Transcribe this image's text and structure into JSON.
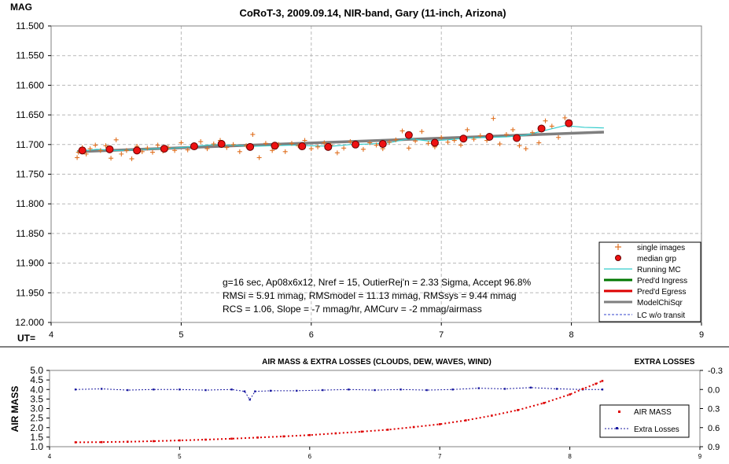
{
  "top_chart": {
    "title": "CoRoT-3, 2009.09.14, NIR-band, Gary (11-inch, Arizona)",
    "ylabel": "MAG",
    "xlabel": "UT=",
    "x_ticks": [
      "4",
      "5",
      "6",
      "7",
      "8",
      "9"
    ],
    "y_ticks": [
      "11.500",
      "11.550",
      "11.600",
      "11.650",
      "11.700",
      "11.750",
      "11.800",
      "11.850",
      "11.900",
      "11.950",
      "12.000"
    ],
    "legend": {
      "single": "single images",
      "median": "median grp",
      "running": "Running MC",
      "ingress": "Pred'd Ingress",
      "egress": "Pred'd Egress",
      "model": "ModelChiSqr",
      "lc": "LC w/o transit"
    },
    "notes": {
      "line1": "g=16 sec, Ap08x6x12, Nref = 15, OutierRej'n = 2.33 Sigma, Accept 96.8%",
      "line2": "RMSi = 5.91 mmag, RMSmodel = 11.13 mmag, RMSsys = 9.44 mmag",
      "line3": "RCS = 1.06, Slope = -7 mmag/hr, AMCurv = -2 mmag/airmass"
    }
  },
  "bottom_chart": {
    "title": "AIR MASS & EXTRA LOSSES (CLOUDS, DEW, WAVES, WIND)",
    "right_title": "EXTRA LOSSES",
    "ylabel": "AIR MASS",
    "x_ticks": [
      "4",
      "5",
      "6",
      "7",
      "8",
      "9"
    ],
    "y_ticks": [
      "5.0",
      "4.5",
      "4.0",
      "3.5",
      "3.0",
      "2.5",
      "2.0",
      "1.5",
      "1.0"
    ],
    "y2_ticks": [
      "-0.3",
      "0.0",
      "0.3",
      "0.6",
      "0.9"
    ],
    "legend": {
      "airmass": "AIR MASS",
      "extra": "Extra Losses"
    }
  },
  "colors": {
    "single": "#e07020",
    "median_fill": "#ee1111",
    "median_edge": "#660000",
    "running": "#33cccc",
    "ingress": "#007700",
    "egress": "#dd0000",
    "model": "#7f7f7f",
    "lc": "#3344cc",
    "airmass": "#dd0000",
    "extra": "#1a1aa0",
    "grid": "#b8b8b8"
  },
  "chart_data": [
    {
      "type": "scatter",
      "title": "CoRoT-3, 2009.09.14, NIR-band, Gary (11-inch, Arizona)",
      "xlabel": "UT=",
      "ylabel": "MAG",
      "xlim": [
        4,
        9
      ],
      "ylim": [
        11.5,
        12.0
      ],
      "y_inverted": true,
      "grid": true,
      "legend_position": "bottom-right",
      "series": [
        {
          "name": "median grp",
          "x": [
            4.24,
            4.45,
            4.66,
            4.87,
            5.1,
            5.31,
            5.53,
            5.72,
            5.93,
            6.13,
            6.34,
            6.55,
            6.75,
            6.95,
            7.17,
            7.37,
            7.58,
            7.77,
            7.98
          ],
          "y": [
            11.71,
            11.708,
            11.71,
            11.707,
            11.703,
            11.699,
            11.704,
            11.702,
            11.703,
            11.704,
            11.7,
            11.699,
            11.684,
            11.697,
            11.69,
            11.687,
            11.689,
            11.673,
            11.664
          ]
        },
        {
          "name": "ModelChiSqr",
          "x": [
            4.2,
            8.25
          ],
          "y": [
            11.712,
            11.679
          ]
        },
        {
          "name": "Running MC",
          "x": [
            4.2,
            4.35,
            4.5,
            4.65,
            4.8,
            4.95,
            5.1,
            5.25,
            5.4,
            5.55,
            5.7,
            5.85,
            6.0,
            6.15,
            6.3,
            6.45,
            6.6,
            6.75,
            6.9,
            7.05,
            7.2,
            7.35,
            7.5,
            7.65,
            7.8,
            7.95,
            8.1,
            8.25
          ],
          "y": [
            11.712,
            11.708,
            11.71,
            11.709,
            11.707,
            11.706,
            11.703,
            11.7,
            11.701,
            11.703,
            11.702,
            11.701,
            11.702,
            11.703,
            11.7,
            11.699,
            11.697,
            11.69,
            11.694,
            11.692,
            11.689,
            11.688,
            11.687,
            11.684,
            11.676,
            11.668,
            11.671,
            11.672
          ]
        },
        {
          "name": "single images",
          "x": [
            4.2,
            4.21,
            4.24,
            4.27,
            4.3,
            4.34,
            4.38,
            4.42,
            4.46,
            4.5,
            4.54,
            4.58,
            4.62,
            4.66,
            4.7,
            4.74,
            4.78,
            4.82,
            4.86,
            4.9,
            4.95,
            5.0,
            5.05,
            5.1,
            5.15,
            5.2,
            5.25,
            5.3,
            5.35,
            5.4,
            5.45,
            5.5,
            5.55,
            5.6,
            5.65,
            5.7,
            5.75,
            5.8,
            5.85,
            5.9,
            5.95,
            6.0,
            6.05,
            6.1,
            6.15,
            6.2,
            6.25,
            6.3,
            6.35,
            6.4,
            6.45,
            6.5,
            6.55,
            6.6,
            6.65,
            6.7,
            6.75,
            6.8,
            6.85,
            6.9,
            6.95,
            7.0,
            7.05,
            7.1,
            7.15,
            7.2,
            7.25,
            7.3,
            7.35,
            7.4,
            7.45,
            7.5,
            7.55,
            7.6,
            7.65,
            7.7,
            7.75,
            7.8,
            7.85,
            7.9,
            7.95
          ],
          "y": [
            11.722,
            11.713,
            11.705,
            11.716,
            11.707,
            11.701,
            11.71,
            11.702,
            11.723,
            11.692,
            11.716,
            11.71,
            11.724,
            11.703,
            11.712,
            11.706,
            11.713,
            11.701,
            11.711,
            11.705,
            11.71,
            11.697,
            11.709,
            11.702,
            11.695,
            11.707,
            11.699,
            11.693,
            11.705,
            11.7,
            11.712,
            11.702,
            11.683,
            11.722,
            11.698,
            11.71,
            11.7,
            11.712,
            11.698,
            11.702,
            11.693,
            11.707,
            11.704,
            11.697,
            11.701,
            11.714,
            11.706,
            11.695,
            11.702,
            11.708,
            11.697,
            11.701,
            11.707,
            11.696,
            11.692,
            11.677,
            11.706,
            11.694,
            11.678,
            11.698,
            11.704,
            11.688,
            11.696,
            11.693,
            11.701,
            11.675,
            11.691,
            11.685,
            11.693,
            11.656,
            11.699,
            11.683,
            11.675,
            11.702,
            11.707,
            11.68,
            11.697,
            11.66,
            11.669,
            11.688,
            11.655
          ]
        }
      ]
    },
    {
      "type": "line",
      "title": "AIR MASS & EXTRA LOSSES (CLOUDS, DEW, WAVES, WIND)",
      "ylabel": "AIR MASS",
      "y2label": "EXTRA LOSSES",
      "xlim": [
        4,
        9
      ],
      "ylim": [
        1.0,
        5.0
      ],
      "y2lim": [
        -0.3,
        0.9
      ],
      "y2_inverted": true,
      "grid": false,
      "legend_position": "right",
      "series": [
        {
          "name": "AIR MASS",
          "x": [
            4.2,
            4.4,
            4.6,
            4.8,
            5.0,
            5.2,
            5.4,
            5.6,
            5.8,
            6.0,
            6.2,
            6.4,
            6.6,
            6.8,
            7.0,
            7.2,
            7.4,
            7.6,
            7.8,
            8.0,
            8.1,
            8.2,
            8.25
          ],
          "y": [
            1.23,
            1.24,
            1.26,
            1.29,
            1.33,
            1.37,
            1.42,
            1.48,
            1.54,
            1.61,
            1.7,
            1.79,
            1.89,
            2.03,
            2.18,
            2.38,
            2.63,
            2.92,
            3.29,
            3.74,
            4.03,
            4.3,
            4.45
          ]
        },
        {
          "name": "Extra Losses",
          "x": [
            4.2,
            4.4,
            4.6,
            4.8,
            5.0,
            5.2,
            5.4,
            5.5,
            5.54,
            5.58,
            5.7,
            5.9,
            6.1,
            6.3,
            6.5,
            6.7,
            6.9,
            7.1,
            7.3,
            7.5,
            7.7,
            7.9,
            8.1,
            8.25
          ],
          "y": [
            -0.0,
            -0.01,
            0.01,
            -0.0,
            0.0,
            0.01,
            0.0,
            0.03,
            0.16,
            0.03,
            0.02,
            0.02,
            0.01,
            0.0,
            0.01,
            0.0,
            0.01,
            -0.0,
            -0.02,
            -0.01,
            -0.03,
            -0.01,
            -0.0,
            0.0
          ]
        }
      ]
    }
  ]
}
